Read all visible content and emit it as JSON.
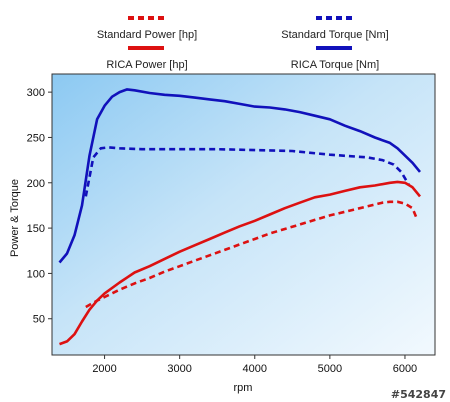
{
  "chart_data": {
    "type": "line",
    "xlabel": "rpm",
    "ylabel": "Power & Torque",
    "xlim": [
      1300,
      6400
    ],
    "ylim": [
      10,
      320
    ],
    "x_ticks": [
      2000,
      3000,
      4000,
      5000,
      6000
    ],
    "y_ticks": [
      50,
      100,
      150,
      200,
      250,
      300
    ],
    "legend_position": "top",
    "background": "blue-gradient",
    "series": [
      {
        "name": "Standard Power [hp]",
        "color": "#dd1111",
        "dashed": true,
        "x": [
          1750,
          1900,
          2000,
          2200,
          2400,
          2600,
          2800,
          3000,
          3200,
          3400,
          3600,
          3800,
          4000,
          4200,
          4400,
          4600,
          4800,
          5000,
          5200,
          5400,
          5600,
          5700,
          5800,
          5900,
          6000,
          6100,
          6150
        ],
        "y": [
          63,
          70,
          74,
          82,
          89,
          95,
          102,
          108,
          114,
          120,
          126,
          132,
          138,
          144,
          149,
          154,
          159,
          164,
          168,
          172,
          176,
          178,
          179,
          179,
          177,
          172,
          162
        ]
      },
      {
        "name": "Standard Torque [Nm]",
        "color": "#1111bb",
        "dashed": true,
        "x": [
          1750,
          1850,
          1950,
          2050,
          2200,
          2500,
          3000,
          3500,
          4000,
          4500,
          5000,
          5500,
          5700,
          5850,
          5950,
          6050
        ],
        "y": [
          185,
          228,
          238,
          239,
          238,
          237,
          237,
          237,
          236,
          235,
          231,
          228,
          225,
          220,
          212,
          198
        ]
      },
      {
        "name": "RICA Power [hp]",
        "color": "#dd1111",
        "dashed": false,
        "x": [
          1400,
          1500,
          1600,
          1700,
          1800,
          1900,
          2000,
          2200,
          2400,
          2600,
          2800,
          3000,
          3200,
          3400,
          3600,
          3800,
          4000,
          4200,
          4400,
          4600,
          4800,
          5000,
          5200,
          5400,
          5600,
          5800,
          5900,
          6000,
          6100,
          6200
        ],
        "y": [
          22,
          25,
          33,
          47,
          60,
          70,
          78,
          90,
          101,
          108,
          116,
          124,
          131,
          138,
          145,
          152,
          158,
          165,
          172,
          178,
          184,
          187,
          191,
          195,
          197,
          200,
          201,
          200,
          195,
          185
        ]
      },
      {
        "name": "RICA Torque [Nm]",
        "color": "#1111bb",
        "dashed": false,
        "x": [
          1400,
          1500,
          1600,
          1700,
          1800,
          1900,
          2000,
          2100,
          2200,
          2300,
          2400,
          2600,
          2800,
          3000,
          3200,
          3400,
          3600,
          3800,
          4000,
          4200,
          4400,
          4600,
          4800,
          5000,
          5200,
          5400,
          5600,
          5800,
          5900,
          6000,
          6100,
          6200
        ],
        "y": [
          112,
          122,
          142,
          175,
          230,
          270,
          285,
          295,
          300,
          303,
          302,
          299,
          297,
          296,
          294,
          292,
          290,
          287,
          284,
          283,
          281,
          278,
          274,
          270,
          263,
          257,
          250,
          244,
          238,
          230,
          222,
          212
        ]
      }
    ]
  },
  "watermark": "#542847"
}
